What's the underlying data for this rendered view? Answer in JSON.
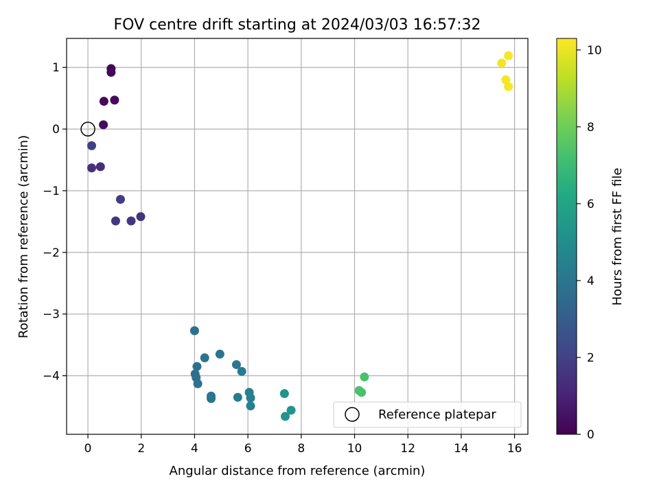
{
  "chart_data": {
    "type": "scatter",
    "title": "FOV centre drift starting at 2024/03/03 16:57:32",
    "xlabel": "Angular distance from reference (arcmin)",
    "ylabel": "Rotation from reference (arcmin)",
    "xlim": [
      -0.8,
      16.5
    ],
    "ylim": [
      -4.95,
      1.47
    ],
    "xticks": [
      0,
      2,
      4,
      6,
      8,
      10,
      12,
      14,
      16
    ],
    "yticks": [
      1,
      0,
      -1,
      -2,
      -3,
      -4
    ],
    "grid": true,
    "legend": {
      "placement": "lower-right",
      "entries": [
        "Reference platepar"
      ]
    },
    "reference": {
      "x": 0,
      "y": 0
    },
    "colorbar": {
      "label": "Hours from first FF file",
      "min": 0,
      "max": 10.3,
      "ticks": [
        0,
        2,
        4,
        6,
        8,
        10
      ],
      "colormap": "viridis"
    },
    "points": [
      {
        "x": 0.87,
        "y": 0.98,
        "c": 0.1
      },
      {
        "x": 0.87,
        "y": 0.92,
        "c": 0.15
      },
      {
        "x": 0.6,
        "y": 0.45,
        "c": 0.2
      },
      {
        "x": 1.0,
        "y": 0.47,
        "c": 0.25
      },
      {
        "x": 0.58,
        "y": 0.07,
        "c": 0.3
      },
      {
        "x": 0.14,
        "y": -0.27,
        "c": 1.9
      },
      {
        "x": 0.14,
        "y": -0.63,
        "c": 1.45
      },
      {
        "x": 0.47,
        "y": -0.61,
        "c": 1.4
      },
      {
        "x": 1.22,
        "y": -1.14,
        "c": 1.8
      },
      {
        "x": 1.04,
        "y": -1.49,
        "c": 1.65
      },
      {
        "x": 1.62,
        "y": -1.49,
        "c": 1.65
      },
      {
        "x": 1.98,
        "y": -1.42,
        "c": 1.55
      },
      {
        "x": 4.0,
        "y": -3.27,
        "c": 3.7
      },
      {
        "x": 4.95,
        "y": -3.65,
        "c": 4.0
      },
      {
        "x": 4.38,
        "y": -3.71,
        "c": 3.9
      },
      {
        "x": 4.09,
        "y": -3.85,
        "c": 3.8
      },
      {
        "x": 4.02,
        "y": -3.97,
        "c": 3.75
      },
      {
        "x": 4.06,
        "y": -4.03,
        "c": 3.8
      },
      {
        "x": 4.12,
        "y": -4.13,
        "c": 3.85
      },
      {
        "x": 4.62,
        "y": -4.33,
        "c": 4.0
      },
      {
        "x": 4.62,
        "y": -4.37,
        "c": 4.0
      },
      {
        "x": 5.57,
        "y": -3.82,
        "c": 4.15
      },
      {
        "x": 5.77,
        "y": -3.93,
        "c": 4.2
      },
      {
        "x": 5.62,
        "y": -4.35,
        "c": 4.3
      },
      {
        "x": 6.05,
        "y": -4.27,
        "c": 4.4
      },
      {
        "x": 6.1,
        "y": -4.36,
        "c": 4.45
      },
      {
        "x": 6.1,
        "y": -4.49,
        "c": 4.5
      },
      {
        "x": 7.37,
        "y": -4.29,
        "c": 5.3
      },
      {
        "x": 7.62,
        "y": -4.56,
        "c": 5.35
      },
      {
        "x": 7.4,
        "y": -4.66,
        "c": 5.3
      },
      {
        "x": 10.37,
        "y": -4.02,
        "c": 7.35
      },
      {
        "x": 10.17,
        "y": -4.24,
        "c": 7.3
      },
      {
        "x": 10.26,
        "y": -4.27,
        "c": 7.3
      },
      {
        "x": 15.77,
        "y": 1.19,
        "c": 10.2
      },
      {
        "x": 15.52,
        "y": 1.07,
        "c": 10.1
      },
      {
        "x": 15.67,
        "y": 0.8,
        "c": 10.15
      },
      {
        "x": 15.77,
        "y": 0.69,
        "c": 10.2
      }
    ]
  }
}
